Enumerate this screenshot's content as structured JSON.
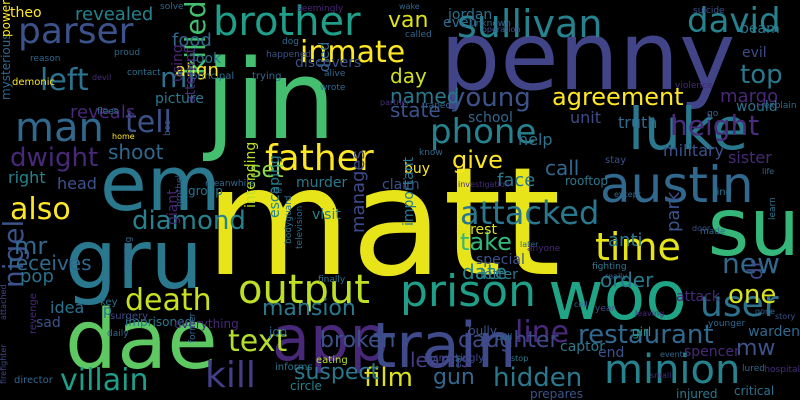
{
  "words": [
    {
      "text": "matt",
      "color": "#e7e419"
    },
    {
      "text": "jin",
      "color": "#44bf70"
    },
    {
      "text": "penny",
      "color": "#414487"
    },
    {
      "text": "su",
      "color": "#35b779"
    },
    {
      "text": "woo",
      "color": "#20a486"
    },
    {
      "text": "gru",
      "color": "#2a788e"
    },
    {
      "text": "dae",
      "color": "#5ec962"
    },
    {
      "text": "em",
      "color": "#2a788e"
    },
    {
      "text": "app",
      "color": "#482878"
    },
    {
      "text": "train",
      "color": "#3e4a89"
    },
    {
      "text": "luke",
      "color": "#2a788e"
    },
    {
      "text": "austin",
      "color": "#31688e"
    },
    {
      "text": "prison",
      "color": "#1f9e89"
    },
    {
      "text": "brother",
      "color": "#1f9e89"
    },
    {
      "text": "output",
      "color": "#bddf26"
    },
    {
      "text": "sullivan",
      "color": "#26828e"
    },
    {
      "text": "david",
      "color": "#26828e"
    },
    {
      "text": "father",
      "color": "#fde725"
    },
    {
      "text": "time",
      "color": "#e5e419"
    },
    {
      "text": "minion",
      "color": "#26828e"
    },
    {
      "text": "user",
      "color": "#2c728e"
    },
    {
      "text": "man",
      "color": "#31688e"
    },
    {
      "text": "parser",
      "color": "#3b528b"
    },
    {
      "text": "tell",
      "color": "#3b528b"
    },
    {
      "text": "inmate",
      "color": "#fde725"
    },
    {
      "text": "killed",
      "color": "#44bf70"
    },
    {
      "text": "phone",
      "color": "#26828e"
    },
    {
      "text": "attacked",
      "color": "#2a788e"
    },
    {
      "text": "height",
      "color": "#472d7b"
    },
    {
      "text": "kill",
      "color": "#433e85"
    },
    {
      "text": "death",
      "color": "#c8e020"
    },
    {
      "text": "text",
      "color": "#b4de2c"
    },
    {
      "text": "diamond",
      "color": "#26828e"
    },
    {
      "text": "also",
      "color": "#fde725"
    },
    {
      "text": "left",
      "color": "#2c728e"
    },
    {
      "text": "mi",
      "color": "#2c728e"
    },
    {
      "text": "line",
      "color": "#482878"
    },
    {
      "text": "hidden",
      "color": "#2a788e"
    },
    {
      "text": "villain",
      "color": "#1f9e89"
    },
    {
      "text": "film",
      "color": "#dde318"
    },
    {
      "text": "restaurant",
      "color": "#31688e"
    },
    {
      "text": "one",
      "color": "#d8e219"
    },
    {
      "text": "top",
      "color": "#2a788e"
    },
    {
      "text": "new",
      "color": "#31688e"
    },
    {
      "text": "nigel",
      "color": "#3b528b"
    },
    {
      "text": "young",
      "color": "#3b528b"
    },
    {
      "text": "dwight",
      "color": "#482878"
    },
    {
      "text": "mr",
      "color": "#31688e"
    },
    {
      "text": "agreement",
      "color": "#fde725"
    },
    {
      "text": "give",
      "color": "#fde725"
    },
    {
      "text": "take",
      "color": "#35b779"
    },
    {
      "text": "mansion",
      "color": "#2a788e"
    },
    {
      "text": "daughter",
      "color": "#3e4a89"
    },
    {
      "text": "broken",
      "color": "#3b528b"
    },
    {
      "text": "suspect",
      "color": "#2a788e"
    },
    {
      "text": "learns",
      "color": "#433e85"
    },
    {
      "text": "manages",
      "color": "#3e4a89"
    },
    {
      "text": "date",
      "color": "#26828e"
    },
    {
      "text": "park",
      "color": "#3b528b"
    },
    {
      "text": "margo",
      "color": "#482878"
    },
    {
      "text": "mw",
      "color": "#3b528b"
    },
    {
      "text": "gun",
      "color": "#31688e"
    },
    {
      "text": "shoot",
      "color": "#31688e"
    },
    {
      "text": "dr",
      "color": "#3e4a89"
    },
    {
      "text": "set",
      "color": "#8fd744"
    },
    {
      "text": "receives",
      "color": "#31688e"
    },
    {
      "text": "reveals",
      "color": "#482878"
    },
    {
      "text": "revealed",
      "color": "#26828e"
    },
    {
      "text": "van",
      "color": "#dde318"
    },
    {
      "text": "day",
      "color": "#d0e11c"
    },
    {
      "text": "food",
      "color": "#31688e"
    },
    {
      "text": "align",
      "color": "#fde725"
    },
    {
      "text": "named",
      "color": "#2a788e"
    },
    {
      "text": "state",
      "color": "#3b528b"
    },
    {
      "text": "call",
      "color": "#31688e"
    },
    {
      "text": "order",
      "color": "#2a788e"
    },
    {
      "text": "anti",
      "color": "#2a788e"
    },
    {
      "text": "pop",
      "color": "#2c728e"
    },
    {
      "text": "head",
      "color": "#3b528b"
    },
    {
      "text": "right",
      "color": "#26828e"
    },
    {
      "text": "idea",
      "color": "#2c728e"
    },
    {
      "text": "theo",
      "color": "#fde725"
    },
    {
      "text": "beam",
      "color": "#2a788e"
    },
    {
      "text": "evil",
      "color": "#3e4a89"
    },
    {
      "text": "jordan",
      "color": "#2c728e"
    },
    {
      "text": "even",
      "color": "#31688e"
    },
    {
      "text": "face",
      "color": "#2a788e"
    },
    {
      "text": "military",
      "color": "#3b528b"
    },
    {
      "text": "sister",
      "color": "#482878"
    },
    {
      "text": "help",
      "color": "#2c728e"
    },
    {
      "text": "truth",
      "color": "#31688e"
    },
    {
      "text": "unit",
      "color": "#3e4a89"
    },
    {
      "text": "school",
      "color": "#31688e"
    },
    {
      "text": "died",
      "color": "#31688e"
    },
    {
      "text": "using",
      "color": "#482878"
    },
    {
      "text": "attempt",
      "color": "#472d7b"
    },
    {
      "text": "picture",
      "color": "#2a788e"
    },
    {
      "text": "look",
      "color": "#2c728e"
    },
    {
      "text": "discovers",
      "color": "#3b528b"
    },
    {
      "text": "would",
      "color": "#2c728e"
    },
    {
      "text": "murder",
      "color": "#2a788e"
    },
    {
      "text": "claim",
      "color": "#3b528b"
    },
    {
      "text": "buy",
      "color": "#fde725"
    },
    {
      "text": "visit",
      "color": "#26828e"
    },
    {
      "text": "arrest",
      "color": "#dde318"
    },
    {
      "text": "letter",
      "color": "#2a788e"
    },
    {
      "text": "captor",
      "color": "#2a788e"
    },
    {
      "text": "end",
      "color": "#3b528b"
    },
    {
      "text": "warden",
      "color": "#31688e"
    },
    {
      "text": "spencer",
      "color": "#482878"
    },
    {
      "text": "attack",
      "color": "#472d7b"
    },
    {
      "text": "girl",
      "color": "#1f9e89"
    },
    {
      "text": "critical",
      "color": "#2c728e"
    },
    {
      "text": "injured",
      "color": "#2a788e"
    },
    {
      "text": "bully",
      "color": "#3b528b"
    },
    {
      "text": "rooftop",
      "color": "#2a788e"
    },
    {
      "text": "group",
      "color": "#2c728e"
    },
    {
      "text": "giant",
      "color": "#482878"
    },
    {
      "text": "intending",
      "color": "#bddf26"
    },
    {
      "text": "escaping",
      "color": "#26828e"
    },
    {
      "text": "important",
      "color": "#2a788e"
    },
    {
      "text": "special",
      "color": "#3b528b"
    },
    {
      "text": "sad",
      "color": "#3b528b"
    },
    {
      "text": "p",
      "color": "#2c728e"
    },
    {
      "text": "key",
      "color": "#2c728e"
    },
    {
      "text": "surgery",
      "color": "#3e4a89"
    },
    {
      "text": "imprisoned",
      "color": "#2a788e"
    },
    {
      "text": "everything",
      "color": "#482878"
    },
    {
      "text": "joo",
      "color": "#31688e"
    },
    {
      "text": "eating",
      "color": "#bddf26"
    },
    {
      "text": "informs",
      "color": "#2a788e"
    },
    {
      "text": "circle",
      "color": "#26828e"
    },
    {
      "text": "increasingly",
      "color": "#3e4a89"
    },
    {
      "text": "prepares",
      "color": "#3b528b"
    },
    {
      "text": "mysterious",
      "color": "#31688e"
    },
    {
      "text": "power",
      "color": "#fde725"
    },
    {
      "text": "demonic",
      "color": "#fde725"
    },
    {
      "text": "devil",
      "color": "#472d7b"
    },
    {
      "text": "flees",
      "color": "#2a788e"
    },
    {
      "text": "home",
      "color": "#fde725"
    },
    {
      "text": "contact",
      "color": "#2c728e"
    },
    {
      "text": "principal",
      "color": "#31688e"
    },
    {
      "text": "trying",
      "color": "#31688e"
    },
    {
      "text": "meanwhile",
      "color": "#31688e"
    },
    {
      "text": "brothel",
      "color": "#3b528b"
    },
    {
      "text": "die",
      "color": "#31688e"
    },
    {
      "text": "bodyguard",
      "color": "#2c728e"
    },
    {
      "text": "television",
      "color": "#31688e"
    },
    {
      "text": "finally",
      "color": "#2c728e"
    },
    {
      "text": "later",
      "color": "#31688e"
    },
    {
      "text": "anyone",
      "color": "#482878"
    },
    {
      "text": "fighting",
      "color": "#2a788e"
    },
    {
      "text": "really",
      "color": "#31688e"
    },
    {
      "text": "year",
      "color": "#3b528b"
    },
    {
      "text": "leaving",
      "color": "#482878"
    },
    {
      "text": "stop",
      "color": "#2a788e"
    },
    {
      "text": "event",
      "color": "#31688e"
    },
    {
      "text": "younger",
      "color": "#31688e"
    },
    {
      "text": "lured",
      "color": "#31688e"
    },
    {
      "text": "hospital",
      "color": "#472d7b"
    },
    {
      "text": "story",
      "color": "#3b528b"
    },
    {
      "text": "learn",
      "color": "#2c728e"
    },
    {
      "text": "life",
      "color": "#31688e"
    },
    {
      "text": "made",
      "color": "#31688e"
    },
    {
      "text": "door",
      "color": "#3b528b"
    },
    {
      "text": "find",
      "color": "#2c728e"
    },
    {
      "text": "except",
      "color": "#31688e"
    },
    {
      "text": "investigation",
      "color": "#472d7b"
    },
    {
      "text": "know",
      "color": "#31688e"
    },
    {
      "text": "stay",
      "color": "#3b528b"
    },
    {
      "text": "violence",
      "color": "#482878"
    },
    {
      "text": "go",
      "color": "#31688e"
    },
    {
      "text": "explain",
      "color": "#31688e"
    },
    {
      "text": "suicide",
      "color": "#3b528b"
    },
    {
      "text": "called",
      "color": "#31688e"
    },
    {
      "text": "unknown",
      "color": "#31688e"
    },
    {
      "text": "operation",
      "color": "#3b528b"
    },
    {
      "text": "wake",
      "color": "#31688e"
    },
    {
      "text": "seemingly",
      "color": "#482878"
    },
    {
      "text": "solve",
      "color": "#31688e"
    },
    {
      "text": "dog",
      "color": "#31688e"
    },
    {
      "text": "happened",
      "color": "#3b528b"
    },
    {
      "text": "proud",
      "color": "#31688e"
    },
    {
      "text": "raped",
      "color": "#31688e"
    },
    {
      "text": "partner",
      "color": "#472d7b"
    },
    {
      "text": "alive",
      "color": "#31688e"
    },
    {
      "text": "wrote",
      "color": "#31688e"
    },
    {
      "text": "bos",
      "color": "#3b528b"
    },
    {
      "text": "reason",
      "color": "#31688e"
    },
    {
      "text": "firefighter",
      "color": "#3e4a89"
    },
    {
      "text": "attached",
      "color": "#3e4a89"
    },
    {
      "text": "director",
      "color": "#31688e"
    },
    {
      "text": "revenge",
      "color": "#482878"
    },
    {
      "text": "daily",
      "color": "#31688e"
    },
    {
      "text": "holding",
      "color": "#31688e"
    },
    {
      "text": "former",
      "color": "#31688e"
    },
    {
      "text": "car",
      "color": "#31688e"
    },
    {
      "text": "pull",
      "color": "#31688e"
    },
    {
      "text": "cell",
      "color": "#31688e"
    },
    {
      "text": "small",
      "color": "#472d7b"
    },
    {
      "text": "gone",
      "color": "#31688e"
    }
  ]
}
